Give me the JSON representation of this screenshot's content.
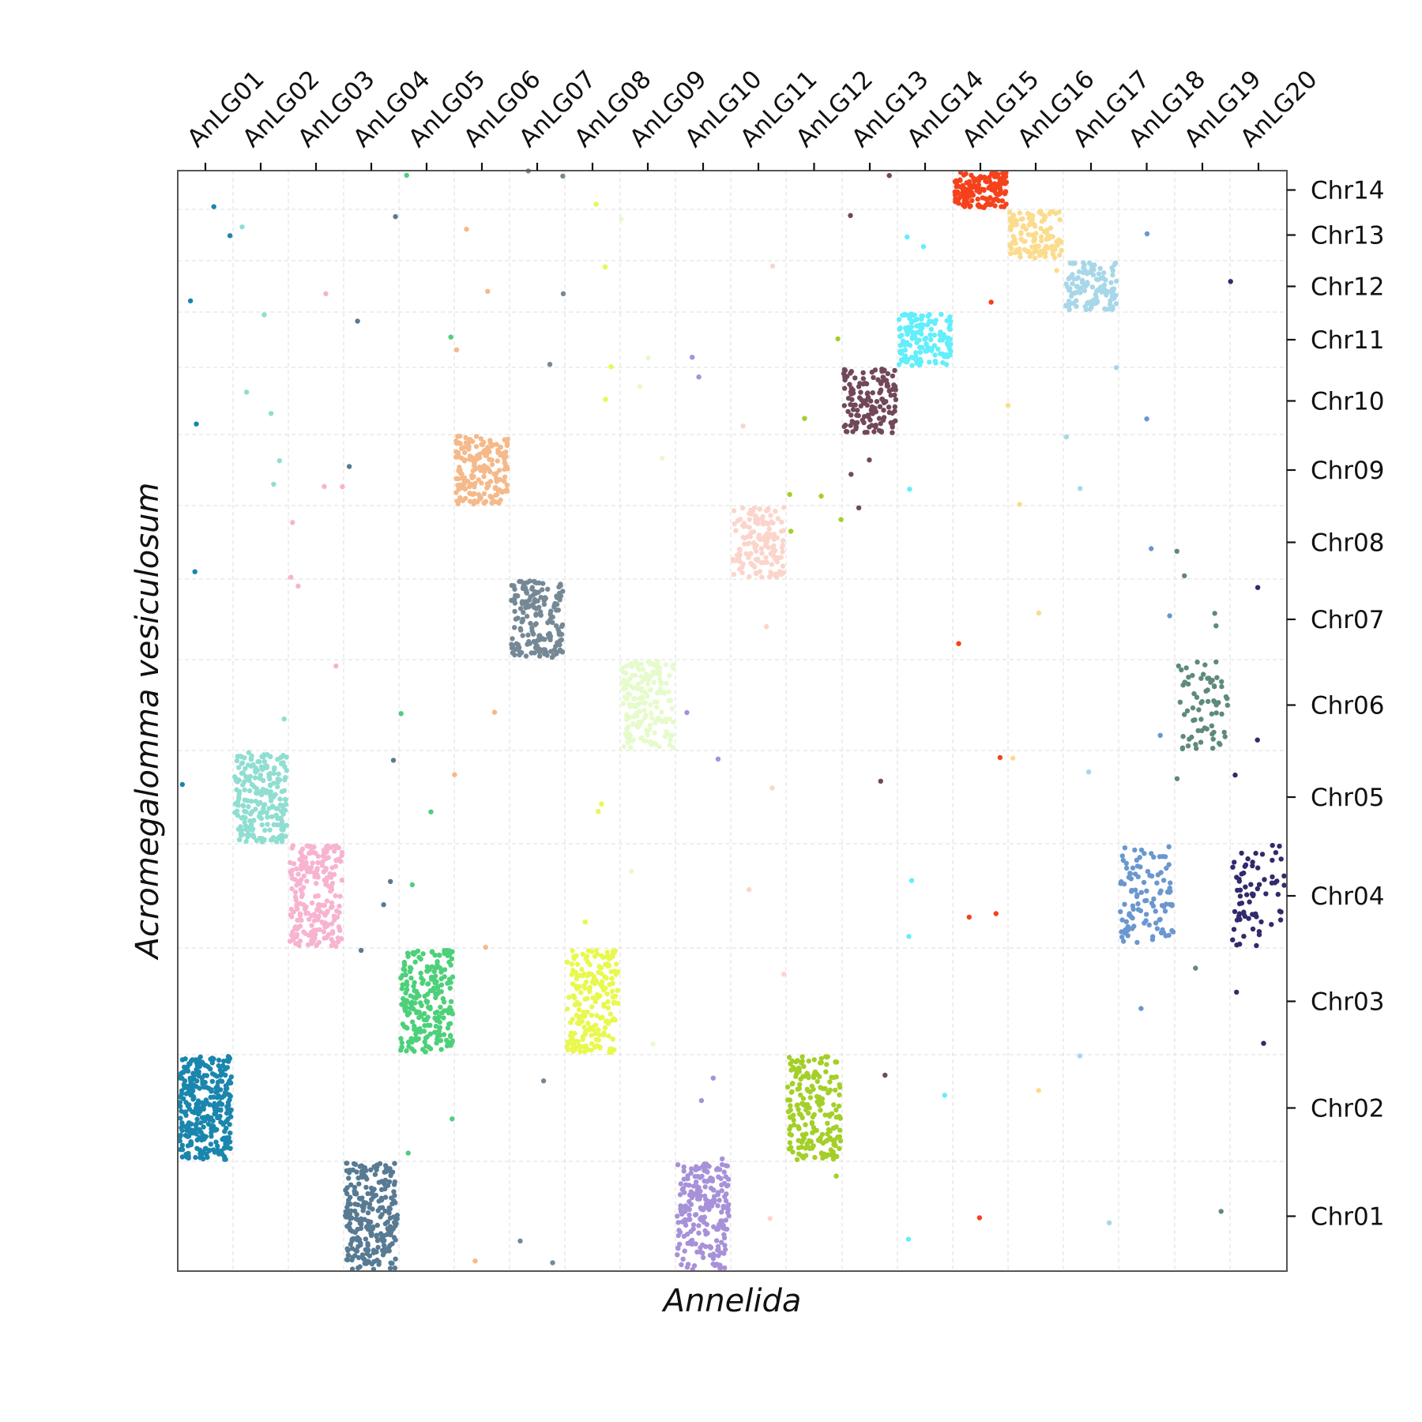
{
  "chart_data": {
    "type": "scatter",
    "xlabel": "Annelida",
    "ylabel": "Acromegalomma vesiculosum",
    "x_ticks": [
      "AnLG01",
      "AnLG02",
      "AnLG03",
      "AnLG04",
      "AnLG05",
      "AnLG06",
      "AnLG07",
      "AnLG08",
      "AnLG09",
      "AnLG10",
      "AnLG11",
      "AnLG12",
      "AnLG13",
      "AnLG14",
      "AnLG15",
      "AnLG16",
      "AnLG17",
      "AnLG18",
      "AnLG19",
      "AnLG20"
    ],
    "y_ticks": [
      "Chr14",
      "Chr13",
      "Chr12",
      "Chr11",
      "Chr10",
      "Chr09",
      "Chr08",
      "Chr07",
      "Chr06",
      "Chr05",
      "Chr04",
      "Chr03",
      "Chr02",
      "Chr01"
    ],
    "x_axis_position": "top",
    "y_axis_position": "right",
    "grid": true,
    "legend": "none",
    "note_units": "x = position along the concatenated Annelida linkage groups, y = position along the concatenated A. vesiculosum chromosomes (top = Chr14); each block occupies the band of its LG and chromosome",
    "clusters": [
      {
        "lg": "AnLG01",
        "chr": "Chr02",
        "color": "#1a86ad",
        "n": 320
      },
      {
        "lg": "AnLG02",
        "chr": "Chr05",
        "color": "#90ded1",
        "n": 230
      },
      {
        "lg": "AnLG03",
        "chr": "Chr04",
        "color": "#f7b3d0",
        "n": 230
      },
      {
        "lg": "AnLG04",
        "chr": "Chr01",
        "color": "#587a93",
        "n": 250
      },
      {
        "lg": "AnLG05",
        "chr": "Chr03",
        "color": "#4dd07a",
        "n": 230
      },
      {
        "lg": "AnLG06",
        "chr": "Chr09",
        "color": "#f5b98a",
        "n": 190
      },
      {
        "lg": "AnLG07",
        "chr": "Chr07",
        "color": "#758895",
        "n": 180
      },
      {
        "lg": "AnLG08",
        "chr": "Chr03",
        "color": "#e8f84e",
        "n": 200
      },
      {
        "lg": "AnLG09",
        "chr": "Chr06",
        "color": "#e6fbcb",
        "n": 180
      },
      {
        "lg": "AnLG10",
        "chr": "Chr01",
        "color": "#a791d8",
        "n": 220
      },
      {
        "lg": "AnLG11",
        "chr": "Chr08",
        "color": "#fbd5cb",
        "n": 150
      },
      {
        "lg": "AnLG12",
        "chr": "Chr02",
        "color": "#a4cf29",
        "n": 200
      },
      {
        "lg": "AnLG13",
        "chr": "Chr10",
        "color": "#71485a",
        "n": 140
      },
      {
        "lg": "AnLG14",
        "chr": "Chr11",
        "color": "#62eefb",
        "n": 140
      },
      {
        "lg": "AnLG15",
        "chr": "Chr14",
        "color": "#f5421c",
        "n": 150
      },
      {
        "lg": "AnLG16",
        "chr": "Chr13",
        "color": "#fbdc8c",
        "n": 120
      },
      {
        "lg": "AnLG17",
        "chr": "Chr12",
        "color": "#a7d7e8",
        "n": 120
      },
      {
        "lg": "AnLG18",
        "chr": "Chr04",
        "color": "#6a97cf",
        "n": 110
      },
      {
        "lg": "AnLG19",
        "chr": "Chr06",
        "color": "#5e8a7c",
        "n": 70
      },
      {
        "lg": "AnLG20",
        "chr": "Chr04",
        "color": "#312a6c",
        "n": 70
      }
    ],
    "scattered_points_per_cluster": 7
  }
}
